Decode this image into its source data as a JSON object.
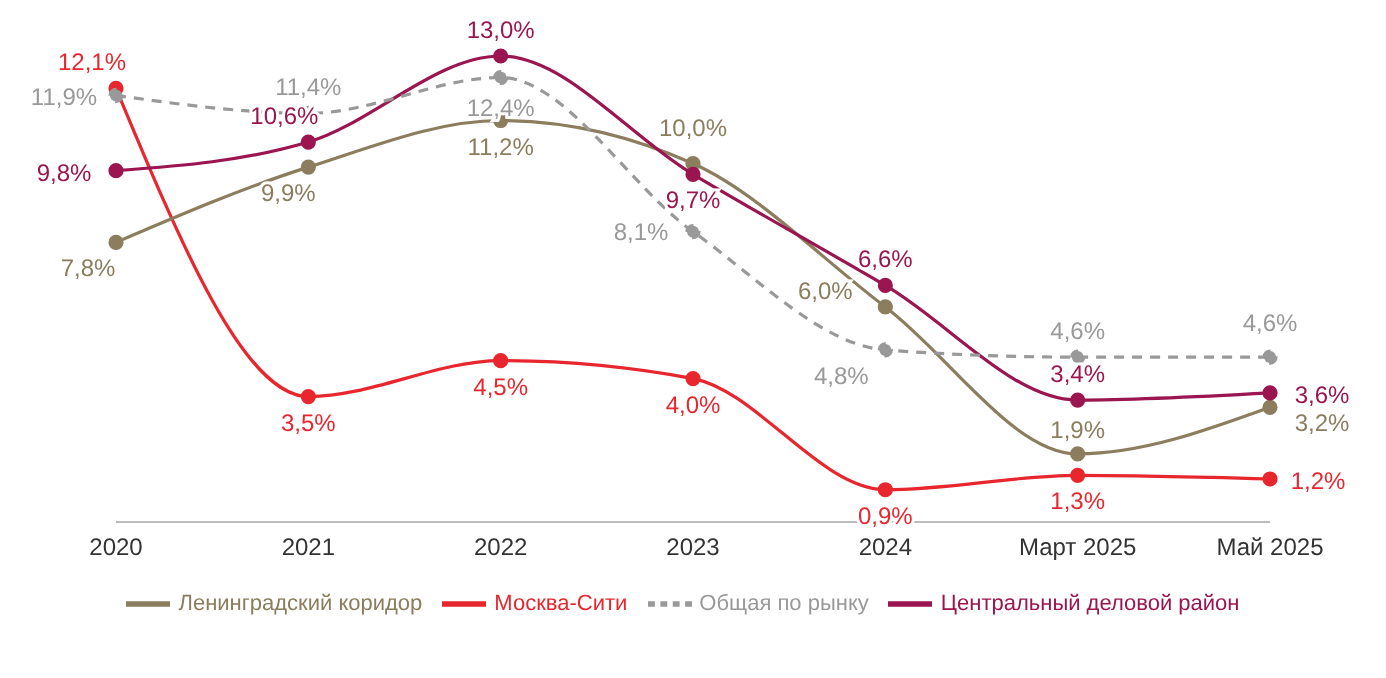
{
  "chart_data": {
    "type": "line",
    "categories": [
      "2020",
      "2021",
      "2022",
      "2023",
      "2024",
      "Март 2025",
      "Май 2025"
    ],
    "series": [
      {
        "name": "Москва-Сити",
        "color": "#e8262e",
        "values": [
          12.1,
          3.5,
          4.5,
          4.0,
          0.9,
          1.3,
          1.2
        ],
        "value_labels": [
          "12,1%",
          "3,5%",
          "4,5%",
          "4,0%",
          "0,9%",
          "1,3%",
          "1,2%"
        ]
      },
      {
        "name": "Ленинградский коридор",
        "color": "#8b7d5e",
        "values": [
          7.8,
          9.9,
          11.2,
          10.0,
          6.0,
          1.9,
          3.2
        ],
        "value_labels": [
          "7,8%",
          "9,9%",
          "11,2%",
          "10,0%",
          "6,0%",
          "1,9%",
          "3,2%"
        ]
      },
      {
        "name": "Центральный деловой район",
        "color": "#9b1550",
        "values": [
          9.8,
          10.6,
          13.0,
          9.7,
          6.6,
          3.4,
          3.6
        ],
        "value_labels": [
          "9,8%",
          "10,6%",
          "13,0%",
          "9,7%",
          "6,6%",
          "3,4%",
          "3,6%"
        ]
      },
      {
        "name": "Общая по рынку",
        "color": "#999999",
        "line_style": "dashed",
        "values": [
          11.9,
          11.4,
          12.4,
          8.1,
          4.8,
          4.6,
          4.6
        ],
        "value_labels": [
          "11,9%",
          "11,4%",
          "12,4%",
          "8,1%",
          "4,8%",
          "4,6%",
          "4,6%"
        ]
      }
    ],
    "marker": "circle",
    "line_style": "solid",
    "legend": "bottom",
    "grid": false
  }
}
